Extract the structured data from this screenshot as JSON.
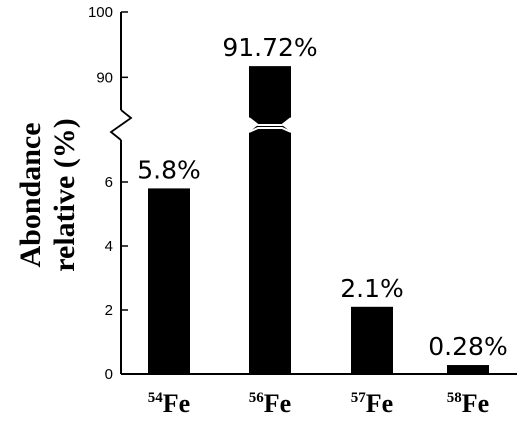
{
  "chart_data": {
    "type": "bar",
    "categories": [
      {
        "sup": "54",
        "base": "Fe"
      },
      {
        "sup": "56",
        "base": "Fe"
      },
      {
        "sup": "57",
        "base": "Fe"
      },
      {
        "sup": "58",
        "base": "Fe"
      }
    ],
    "values": [
      5.8,
      91.72,
      2.1,
      0.28
    ],
    "data_labels": [
      "5.8%",
      "91.72%",
      "2.1%",
      "0.28%"
    ],
    "ylabel_lines": [
      "Abondance",
      "relative (%)"
    ],
    "y_axis": {
      "broken": true,
      "lower_range": [
        0,
        7
      ],
      "upper_range": [
        85,
        100
      ],
      "lower_ticks": [
        "0",
        "2",
        "4",
        "6"
      ],
      "upper_ticks": [
        "90",
        "100"
      ]
    },
    "bar_color": "#000000"
  }
}
